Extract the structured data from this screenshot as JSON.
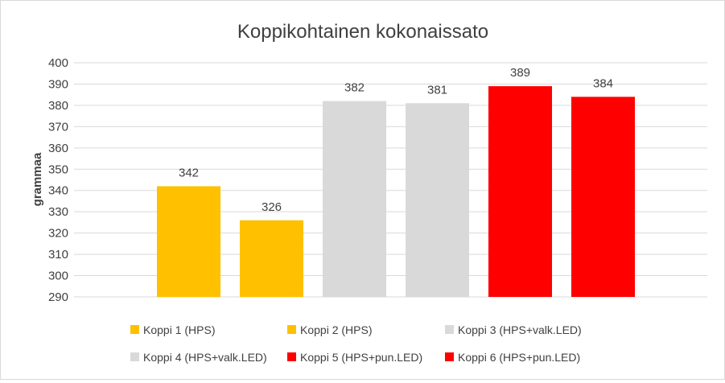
{
  "chart_data": {
    "type": "bar",
    "title": "Koppikohtainen kokonaissato",
    "xlabel": "",
    "ylabel": "grammaa",
    "ylim": [
      290,
      400
    ],
    "ytick_step": 10,
    "grid": true,
    "legend_position": "bottom",
    "categories": [
      "Koppi 1 (HPS)",
      "Koppi 2 (HPS)",
      "Koppi 3 (HPS+valk.LED)",
      "Koppi 4 (HPS+valk.LED)",
      "Koppi 5 (HPS+pun.LED)",
      "Koppi 6 (HPS+pun.LED)"
    ],
    "values": [
      342,
      326,
      382,
      381,
      389,
      384
    ],
    "colors": [
      "#FFC000",
      "#FFC000",
      "#D9D9D9",
      "#D9D9D9",
      "#FF0000",
      "#FF0000"
    ],
    "gridline_color": "#D9D9D9",
    "text_color": "#404040"
  }
}
